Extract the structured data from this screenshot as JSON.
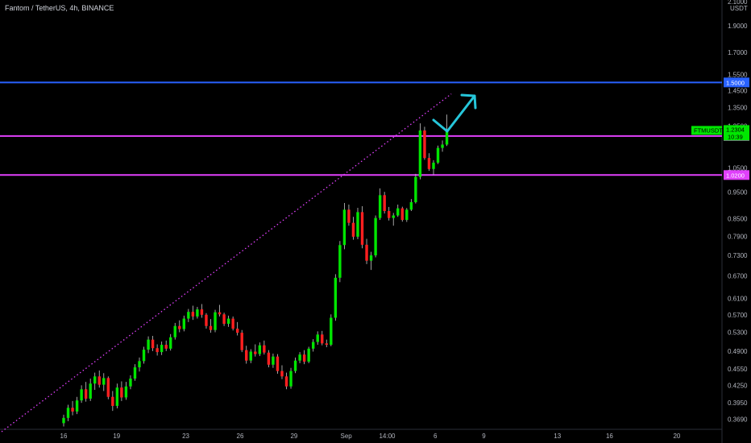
{
  "chart_title": "Fantom / TetherUS, 4h, BINANCE",
  "chart_data": {
    "type": "candlestick",
    "title": "Fantom / TetherUS, 4h, BINANCE",
    "symbol": "FTMUSDT",
    "y_scale": "log",
    "ylim": [
      0.355,
      2.1
    ],
    "currency_label": "USDT",
    "y_ticks": [
      "2.1000",
      "1.9000",
      "1.7000",
      "1.5500",
      "1.4500",
      "1.3500",
      "1.2500",
      "1.0500",
      "0.9500",
      "0.8500",
      "0.7900",
      "0.7300",
      "0.6700",
      "0.6100",
      "0.5700",
      "0.5300",
      "0.4900",
      "0.4550",
      "0.4250",
      "0.3950",
      "0.3690"
    ],
    "x_ticks": [
      "16",
      "19",
      "23",
      "26",
      "29",
      "Sep",
      "14:00",
      "6",
      "9",
      "13",
      "16",
      "20"
    ],
    "candles": [
      [
        0.363,
        0.376,
        0.358,
        0.371
      ],
      [
        0.371,
        0.392,
        0.366,
        0.387
      ],
      [
        0.387,
        0.398,
        0.375,
        0.381
      ],
      [
        0.381,
        0.405,
        0.377,
        0.399
      ],
      [
        0.399,
        0.425,
        0.395,
        0.418
      ],
      [
        0.418,
        0.431,
        0.397,
        0.402
      ],
      [
        0.402,
        0.437,
        0.398,
        0.428
      ],
      [
        0.428,
        0.448,
        0.417,
        0.441
      ],
      [
        0.441,
        0.452,
        0.421,
        0.426
      ],
      [
        0.426,
        0.447,
        0.415,
        0.438
      ],
      [
        0.438,
        0.441,
        0.401,
        0.405
      ],
      [
        0.405,
        0.415,
        0.382,
        0.39
      ],
      [
        0.39,
        0.428,
        0.386,
        0.421
      ],
      [
        0.421,
        0.432,
        0.398,
        0.404
      ],
      [
        0.404,
        0.431,
        0.4,
        0.423
      ],
      [
        0.423,
        0.443,
        0.418,
        0.437
      ],
      [
        0.437,
        0.464,
        0.433,
        0.458
      ],
      [
        0.458,
        0.477,
        0.45,
        0.47
      ],
      [
        0.47,
        0.499,
        0.465,
        0.493
      ],
      [
        0.493,
        0.521,
        0.486,
        0.514
      ],
      [
        0.514,
        0.522,
        0.49,
        0.496
      ],
      [
        0.496,
        0.504,
        0.481,
        0.488
      ],
      [
        0.488,
        0.51,
        0.482,
        0.503
      ],
      [
        0.503,
        0.512,
        0.49,
        0.495
      ],
      [
        0.495,
        0.526,
        0.491,
        0.519
      ],
      [
        0.519,
        0.551,
        0.514,
        0.544
      ],
      [
        0.544,
        0.557,
        0.53,
        0.537
      ],
      [
        0.537,
        0.568,
        0.532,
        0.561
      ],
      [
        0.561,
        0.584,
        0.553,
        0.577
      ],
      [
        0.577,
        0.592,
        0.558,
        0.566
      ],
      [
        0.566,
        0.589,
        0.561,
        0.583
      ],
      [
        0.583,
        0.596,
        0.563,
        0.57
      ],
      [
        0.57,
        0.574,
        0.538,
        0.544
      ],
      [
        0.544,
        0.56,
        0.529,
        0.535
      ],
      [
        0.535,
        0.582,
        0.53,
        0.576
      ],
      [
        0.576,
        0.594,
        0.566,
        0.571
      ],
      [
        0.571,
        0.575,
        0.544,
        0.549
      ],
      [
        0.549,
        0.568,
        0.542,
        0.561
      ],
      [
        0.561,
        0.566,
        0.534,
        0.538
      ],
      [
        0.538,
        0.553,
        0.523,
        0.529
      ],
      [
        0.529,
        0.535,
        0.488,
        0.492
      ],
      [
        0.492,
        0.501,
        0.465,
        0.471
      ],
      [
        0.471,
        0.494,
        0.466,
        0.489
      ],
      [
        0.489,
        0.504,
        0.479,
        0.484
      ],
      [
        0.484,
        0.508,
        0.48,
        0.502
      ],
      [
        0.502,
        0.512,
        0.483,
        0.487
      ],
      [
        0.487,
        0.492,
        0.458,
        0.463
      ],
      [
        0.463,
        0.485,
        0.457,
        0.479
      ],
      [
        0.479,
        0.484,
        0.446,
        0.451
      ],
      [
        0.451,
        0.462,
        0.436,
        0.441
      ],
      [
        0.441,
        0.448,
        0.418,
        0.423
      ],
      [
        0.423,
        0.457,
        0.419,
        0.451
      ],
      [
        0.451,
        0.477,
        0.447,
        0.471
      ],
      [
        0.471,
        0.488,
        0.466,
        0.483
      ],
      [
        0.483,
        0.492,
        0.464,
        0.469
      ],
      [
        0.469,
        0.499,
        0.466,
        0.495
      ],
      [
        0.495,
        0.515,
        0.489,
        0.509
      ],
      [
        0.509,
        0.532,
        0.503,
        0.525
      ],
      [
        0.525,
        0.533,
        0.502,
        0.506
      ],
      [
        0.506,
        0.514,
        0.498,
        0.503
      ],
      [
        0.503,
        0.571,
        0.5,
        0.563
      ],
      [
        0.563,
        0.675,
        0.556,
        0.665
      ],
      [
        0.665,
        0.775,
        0.653,
        0.762
      ],
      [
        0.762,
        0.908,
        0.749,
        0.883
      ],
      [
        0.883,
        0.902,
        0.826,
        0.836
      ],
      [
        0.836,
        0.857,
        0.779,
        0.789
      ],
      [
        0.789,
        0.89,
        0.781,
        0.874
      ],
      [
        0.874,
        0.896,
        0.752,
        0.763
      ],
      [
        0.763,
        0.782,
        0.704,
        0.714
      ],
      [
        0.714,
        0.741,
        0.687,
        0.73
      ],
      [
        0.73,
        0.862,
        0.724,
        0.853
      ],
      [
        0.853,
        0.965,
        0.846,
        0.938
      ],
      [
        0.938,
        0.951,
        0.869,
        0.878
      ],
      [
        0.878,
        0.893,
        0.844,
        0.853
      ],
      [
        0.853,
        0.871,
        0.826,
        0.862
      ],
      [
        0.862,
        0.902,
        0.857,
        0.888
      ],
      [
        0.888,
        0.894,
        0.84,
        0.846
      ],
      [
        0.846,
        0.889,
        0.839,
        0.883
      ],
      [
        0.883,
        0.923,
        0.878,
        0.911
      ],
      [
        0.911,
        1.025,
        0.906,
        1.012
      ],
      [
        1.012,
        1.265,
        1.002,
        1.228
      ],
      [
        1.228,
        1.247,
        1.087,
        1.095
      ],
      [
        1.095,
        1.117,
        1.038,
        1.046
      ],
      [
        1.046,
        1.085,
        1.02,
        1.074
      ],
      [
        1.074,
        1.153,
        1.068,
        1.142
      ],
      [
        1.142,
        1.178,
        1.124,
        1.158
      ],
      [
        1.158,
        1.312,
        1.151,
        1.23
      ]
    ],
    "annotations": {
      "trendline": {
        "style": "dotted",
        "color": "#e040fb",
        "from": [
          0,
          0.355
        ],
        "to": [
          87,
          1.43
        ]
      },
      "horizontal_lines": [
        {
          "price": 1.5,
          "label": "1.5000",
          "color": "#2962ff"
        },
        {
          "price": 1.2,
          "label": "1.2000",
          "color": "#e040fb"
        },
        {
          "price": 1.02,
          "label": "1.0200",
          "color": "#e040fb"
        }
      ],
      "projection_arrow": {
        "color": "#26c6da"
      }
    },
    "last_price_badge": {
      "symbol": "FTMUSDT",
      "price": "1.2304",
      "countdown": "10:39",
      "color": "#00e600"
    },
    "up_color": "#00e600",
    "down_color": "#ff1f1f"
  }
}
